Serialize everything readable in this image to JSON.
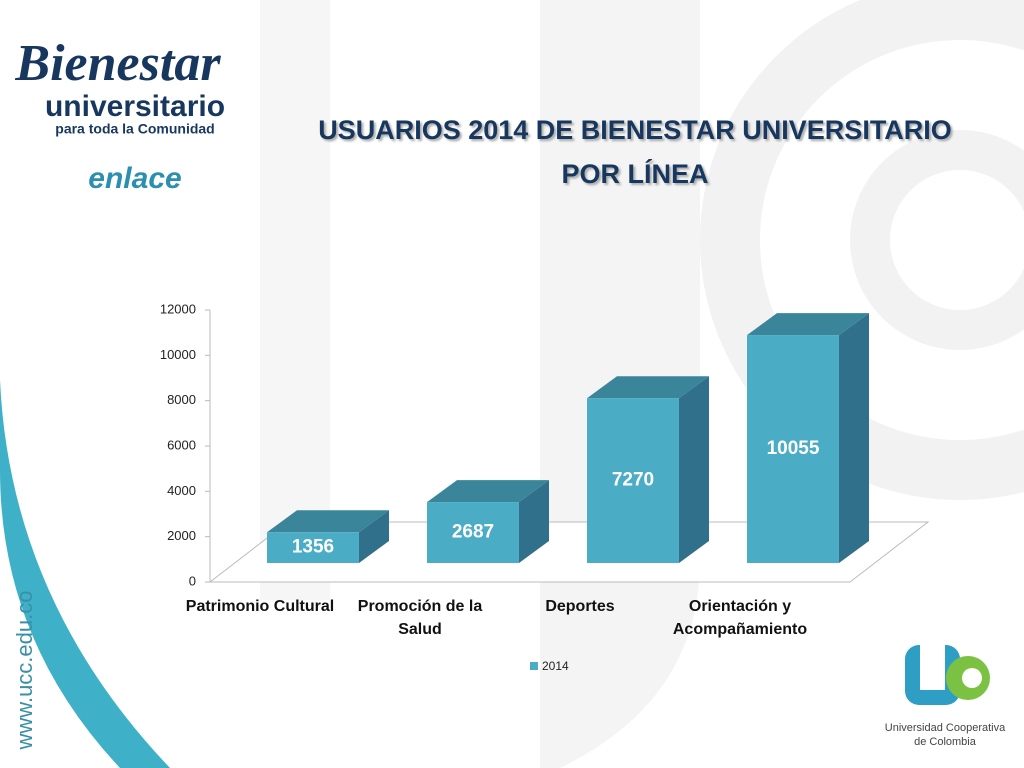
{
  "chart_data": {
    "type": "bar3d",
    "title": [
      "USUARIOS 2014 DE BIENESTAR UNIVERSITARIO",
      "POR  LÍNEA"
    ],
    "categories": [
      "Patrimonio Cultural",
      "Promoción de la Salud",
      "Deportes",
      "Orientación y Acompañamiento"
    ],
    "series": [
      {
        "name": "2014",
        "color": "#4bacc6",
        "values": [
          1356,
          2687,
          7270,
          10055
        ]
      }
    ],
    "ylim": [
      0,
      12000
    ],
    "yticks": [
      0,
      2000,
      4000,
      6000,
      8000,
      10000,
      12000
    ],
    "legend": "bottom"
  },
  "logos": {
    "bienestar": "Bienestar",
    "universitario": "universitario",
    "tagline": "para toda la Comunidad",
    "enlace": "enlace",
    "university": [
      "Universidad Cooperativa",
      "de Colombia"
    ],
    "website": "www.ucc.edu.co"
  }
}
